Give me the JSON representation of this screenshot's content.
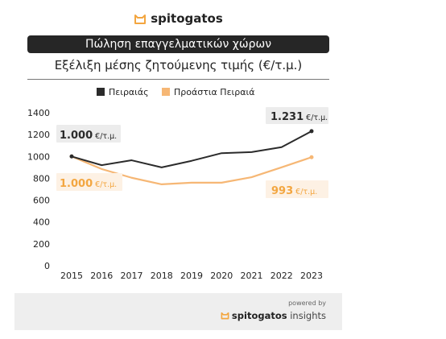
{
  "header": {
    "brand": "spitogatos",
    "title": "Πώληση επαγγελματικών χώρων",
    "subtitle": "Εξέλιξη μέσης ζητούμενης τιμής (€/τ.μ.)"
  },
  "colors": {
    "dark": "#2b2b2b",
    "orange": "#f6b775",
    "orange_text": "#f3a640",
    "title_bg": "#262626",
    "label_bg": "#ececec",
    "label_bg_orange": "#fdf1e4"
  },
  "chart_data": {
    "type": "line",
    "x": [
      2015,
      2016,
      2017,
      2018,
      2019,
      2020,
      2021,
      2022,
      2023
    ],
    "categories": [
      "2015",
      "2016",
      "2017",
      "2018",
      "2019",
      "2020",
      "2021",
      "2022",
      "2023"
    ],
    "series": [
      {
        "name": "Πειραιάς",
        "color": "#2b2b2b",
        "values": [
          1000,
          920,
          965,
          900,
          960,
          1030,
          1040,
          1085,
          1231
        ]
      },
      {
        "name": "Προάστια Πειραιά",
        "color": "#f6b775",
        "values": [
          1000,
          885,
          805,
          745,
          760,
          760,
          810,
          900,
          993
        ]
      }
    ],
    "ylim": [
      0,
      1400
    ],
    "yticks": [
      "0",
      "200",
      "400",
      "600",
      "800",
      "1000",
      "1200",
      "1400"
    ],
    "grid": false,
    "legend_position": "top",
    "annotations": [
      {
        "series": 0,
        "text": "1.231",
        "unit": "€/τ.μ."
      },
      {
        "series": 0,
        "text": "1.000",
        "unit": "€/τ.μ."
      },
      {
        "series": 1,
        "text": "1.000",
        "unit": "€/τ.μ."
      },
      {
        "series": 1,
        "text": "993",
        "unit": "€/τ.μ."
      }
    ]
  },
  "footer": {
    "powered": "powered by",
    "brand": "spitogatos",
    "suffix": "insights"
  }
}
